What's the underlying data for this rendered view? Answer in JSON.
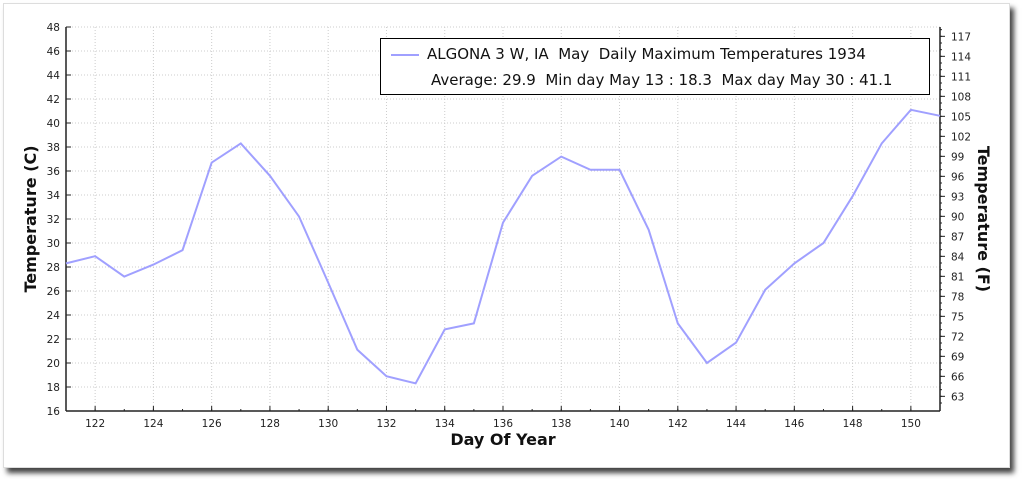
{
  "chart_data": {
    "type": "line",
    "title": "ALGONA 3 W, IA  May  Daily Maximum Temperatures 1934",
    "subtitle": "Average: 29.9  Min day May 13 : 18.3  Max day May 30 : 41.1",
    "xlabel": "Day Of Year",
    "ylabel": "Temperature (C)",
    "ylabel_right": "Temperature (F)",
    "xlim": [
      121,
      151
    ],
    "ylim": [
      16,
      48
    ],
    "x": [
      121,
      122,
      123,
      124,
      125,
      126,
      127,
      128,
      129,
      130,
      131,
      132,
      133,
      134,
      135,
      136,
      137,
      138,
      139,
      140,
      141,
      142,
      143,
      144,
      145,
      146,
      147,
      148,
      149,
      150,
      151
    ],
    "series": [
      {
        "name": "ALGONA 3 W, IA  May  Daily Maximum Temperatures 1934",
        "color": "#a0a0ff",
        "values": [
          28.3,
          28.9,
          27.2,
          28.2,
          29.4,
          36.7,
          38.3,
          35.6,
          32.2,
          26.7,
          21.1,
          18.9,
          18.3,
          22.8,
          23.3,
          31.7,
          35.6,
          37.2,
          36.1,
          36.1,
          31.1,
          23.3,
          20.0,
          21.7,
          26.1,
          28.3,
          30.0,
          33.9,
          38.3,
          41.1,
          40.6
        ]
      }
    ],
    "xticks": [
      "122",
      "124",
      "126",
      "128",
      "130",
      "132",
      "134",
      "136",
      "138",
      "140",
      "142",
      "144",
      "146",
      "148",
      "150"
    ],
    "yticks": [
      "16",
      "18",
      "20",
      "22",
      "24",
      "26",
      "28",
      "30",
      "32",
      "34",
      "36",
      "38",
      "40",
      "42",
      "44",
      "46",
      "48"
    ],
    "yticks_right": [
      "63",
      "66",
      "69",
      "72",
      "75",
      "78",
      "81",
      "84",
      "87",
      "90",
      "93",
      "96",
      "99",
      "102",
      "105",
      "108",
      "111",
      "114",
      "117"
    ],
    "grid": true,
    "legend": "top-right"
  }
}
